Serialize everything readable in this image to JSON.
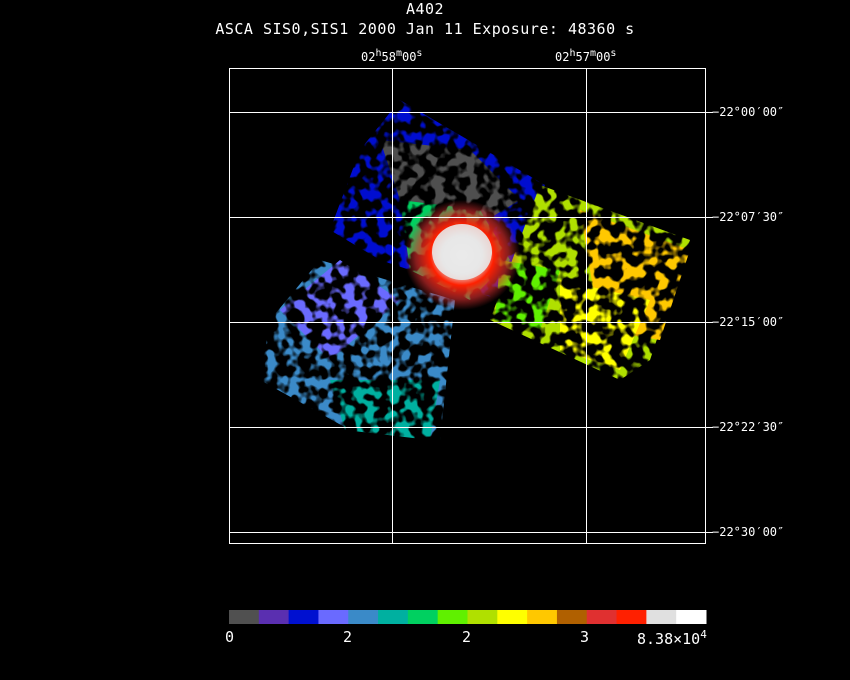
{
  "header": {
    "title": "A402",
    "subtitle": "ASCA SIS0,SIS1   2000 Jan 11    Exposure: 48360 s"
  },
  "axes": {
    "ra_ticks": [
      {
        "h": "02",
        "m": "58",
        "s": "00"
      },
      {
        "h": "02",
        "m": "57",
        "s": "00"
      }
    ],
    "dec_ticks": [
      "−22°00′00″",
      "−22°07′30″",
      "−22°15′00″",
      "−22°22′30″",
      "−22°30′00″"
    ]
  },
  "colorbar": {
    "colors": [
      "#505050",
      "#5a2fb0",
      "#0010d0",
      "#6a6aff",
      "#3a8ac8",
      "#00b0a0",
      "#00d060",
      "#60f000",
      "#b0e000",
      "#ffff00",
      "#ffc800",
      "#b06000",
      "#e03030",
      "#ff2000",
      "#e0e0e0",
      "#ffffff"
    ],
    "tick_labels": [
      "0",
      "2",
      "2",
      "3"
    ],
    "max_label_mantissa": "8.38×10",
    "max_label_exponent": "4"
  }
}
